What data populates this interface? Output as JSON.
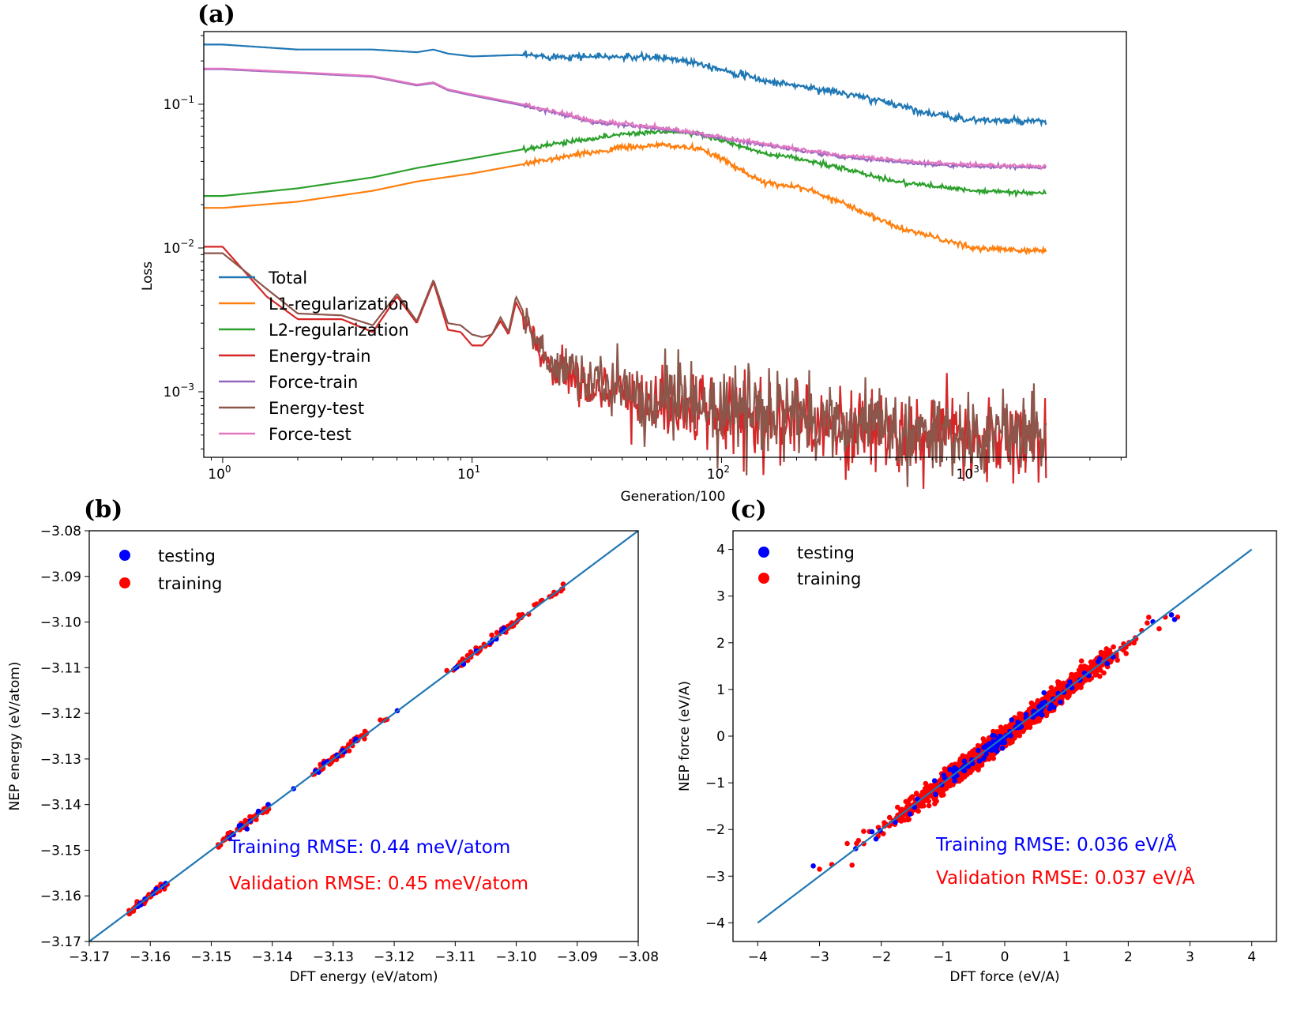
{
  "chart_data": [
    {
      "panel": "(a)",
      "type": "line",
      "xscale": "log",
      "yscale": "log",
      "xlabel": "Generation/100",
      "ylabel": "Loss",
      "xlim": [
        0.84,
        4200
      ],
      "ylim": [
        0.00035,
        0.32
      ],
      "xticks": [
        {
          "value": 1,
          "base": "10",
          "exp": "0"
        },
        {
          "value": 10,
          "base": "10",
          "exp": "1"
        },
        {
          "value": 100,
          "base": "10",
          "exp": "2"
        },
        {
          "value": 1000,
          "base": "10",
          "exp": "3"
        }
      ],
      "yticks": [
        {
          "value": 0.001,
          "base": "10",
          "exp": "−3"
        },
        {
          "value": 0.01,
          "base": "10",
          "exp": "−2"
        },
        {
          "value": 0.1,
          "base": "10",
          "exp": "−1"
        }
      ],
      "legend_position": "lower-left",
      "series": [
        {
          "name": "Total",
          "color": "#1f77b4",
          "noise": 0.012,
          "x": [
            0.84,
            1,
            2,
            4,
            6,
            7,
            8,
            10,
            15,
            20,
            30,
            60,
            80,
            100,
            150,
            200,
            300,
            500,
            700,
            1000,
            2000
          ],
          "y": [
            0.26,
            0.26,
            0.24,
            0.24,
            0.23,
            0.24,
            0.225,
            0.215,
            0.22,
            0.215,
            0.215,
            0.21,
            0.195,
            0.175,
            0.145,
            0.135,
            0.12,
            0.1,
            0.085,
            0.078,
            0.075
          ]
        },
        {
          "name": "L1-regularization",
          "color": "#ff7f0e",
          "noise": 0.01,
          "x": [
            0.84,
            1,
            2,
            4,
            6,
            10,
            20,
            40,
            60,
            80,
            100,
            150,
            200,
            300,
            500,
            700,
            1000,
            2000
          ],
          "y": [
            0.019,
            0.019,
            0.021,
            0.025,
            0.029,
            0.033,
            0.041,
            0.05,
            0.052,
            0.049,
            0.042,
            0.028,
            0.027,
            0.021,
            0.014,
            0.012,
            0.01,
            0.0095
          ]
        },
        {
          "name": "L2-regularization",
          "color": "#2ca02c",
          "noise": 0.008,
          "x": [
            0.84,
            1,
            2,
            4,
            6,
            10,
            20,
            40,
            60,
            80,
            100,
            150,
            200,
            300,
            500,
            700,
            1000,
            2000
          ],
          "y": [
            0.023,
            0.023,
            0.026,
            0.031,
            0.036,
            0.042,
            0.052,
            0.062,
            0.065,
            0.062,
            0.056,
            0.045,
            0.042,
            0.036,
            0.029,
            0.027,
            0.025,
            0.024
          ]
        },
        {
          "name": "Energy-train",
          "color": "#d62728",
          "noise": 0.14,
          "x": [
            0.84,
            1,
            1.5,
            2,
            3,
            4,
            5,
            6,
            7,
            8,
            9,
            10,
            11,
            12,
            13,
            14,
            15,
            20,
            30,
            50,
            100,
            200,
            300,
            500,
            1000,
            2000
          ],
          "y": [
            0.0102,
            0.0102,
            0.0046,
            0.0032,
            0.0032,
            0.0026,
            0.0046,
            0.003,
            0.0058,
            0.0027,
            0.0026,
            0.0021,
            0.0021,
            0.0025,
            0.0031,
            0.0025,
            0.0042,
            0.0015,
            0.0011,
            0.00085,
            0.0007,
            0.00065,
            0.00058,
            0.00052,
            0.00048,
            0.00046
          ]
        },
        {
          "name": "Force-train",
          "color": "#9467bd",
          "noise": 0.006,
          "x": [
            0.84,
            1,
            2,
            4,
            6,
            7,
            8,
            10,
            15,
            20,
            30,
            60,
            80,
            100,
            150,
            200,
            300,
            500,
            700,
            1000,
            2000
          ],
          "y": [
            0.175,
            0.175,
            0.165,
            0.155,
            0.135,
            0.14,
            0.125,
            0.115,
            0.1,
            0.09,
            0.075,
            0.067,
            0.062,
            0.058,
            0.052,
            0.048,
            0.043,
            0.04,
            0.038,
            0.037,
            0.036
          ]
        },
        {
          "name": "Energy-test",
          "color": "#8c564b",
          "noise": 0.14,
          "x": [
            0.84,
            1,
            1.5,
            2,
            3,
            4,
            5,
            6,
            7,
            8,
            9,
            10,
            11,
            12,
            13,
            14,
            15,
            20,
            30,
            50,
            100,
            200,
            300,
            500,
            1000,
            2000
          ],
          "y": [
            0.0092,
            0.0092,
            0.0052,
            0.0035,
            0.0034,
            0.0029,
            0.0048,
            0.0031,
            0.006,
            0.003,
            0.0029,
            0.0025,
            0.0024,
            0.0025,
            0.0033,
            0.0026,
            0.0046,
            0.0016,
            0.0012,
            0.0009,
            0.00075,
            0.00068,
            0.0006,
            0.00054,
            0.0005,
            0.00048
          ]
        },
        {
          "name": "Force-test",
          "color": "#e377c2",
          "noise": 0.006,
          "x": [
            0.84,
            1,
            2,
            4,
            6,
            7,
            8,
            10,
            15,
            20,
            30,
            60,
            80,
            100,
            150,
            200,
            300,
            500,
            700,
            1000,
            2000
          ],
          "y": [
            0.177,
            0.177,
            0.167,
            0.157,
            0.137,
            0.142,
            0.127,
            0.117,
            0.102,
            0.092,
            0.077,
            0.068,
            0.063,
            0.059,
            0.053,
            0.049,
            0.044,
            0.041,
            0.039,
            0.038,
            0.037
          ]
        }
      ]
    },
    {
      "panel": "(b)",
      "type": "scatter",
      "xlabel": "DFT energy (eV/atom)",
      "ylabel": "NEP energy (eV/atom)",
      "xlim": [
        -3.17,
        -3.08
      ],
      "ylim": [
        -3.17,
        -3.08
      ],
      "xticks": [
        -3.17,
        -3.16,
        -3.15,
        -3.14,
        -3.13,
        -3.12,
        -3.11,
        -3.1,
        -3.09,
        -3.08
      ],
      "yticks": [
        -3.17,
        -3.16,
        -3.15,
        -3.14,
        -3.13,
        -3.12,
        -3.11,
        -3.1,
        -3.09,
        -3.08
      ],
      "diagonal": [
        [
          -3.17,
          -3.17
        ],
        [
          -3.08,
          -3.08
        ]
      ],
      "legend_position": "upper-left",
      "series": [
        {
          "name": "testing",
          "color": "#0000ff",
          "clusters": [
            [
              -3.1625,
              -3.157,
              8
            ],
            [
              -3.148,
              -3.1405,
              10
            ],
            [
              -3.133,
              -3.1255,
              10
            ],
            [
              -3.111,
              -3.102,
              10
            ],
            [
              -3.1365,
              -3.1365,
              1
            ],
            [
              -3.1195,
              -3.1195,
              1
            ]
          ]
        },
        {
          "name": "training",
          "color": "#ff0000",
          "clusters": [
            [
              -3.1635,
              -3.157,
              45
            ],
            [
              -3.149,
              -3.1405,
              55
            ],
            [
              -3.1335,
              -3.1245,
              50
            ],
            [
              -3.1115,
              -3.0985,
              50
            ],
            [
              -3.0985,
              -3.0915,
              14
            ],
            [
              -3.1225,
              -3.1205,
              3
            ]
          ]
        }
      ],
      "annotations": [
        {
          "text": "Training RMSE: 0.44 meV/atom",
          "color": "#0000ff"
        },
        {
          "text": "Validation RMSE: 0.45 meV/atom",
          "color": "#ff0000"
        }
      ]
    },
    {
      "panel": "(c)",
      "type": "scatter",
      "xlabel": "DFT force (eV/A)",
      "ylabel": "NEP force (eV/A)",
      "xlim": [
        -4.4,
        4.4
      ],
      "ylim": [
        -4.4,
        4.4
      ],
      "xticks": [
        -4,
        -3,
        -2,
        -1,
        0,
        1,
        2,
        3,
        4
      ],
      "yticks": [
        -4,
        -3,
        -2,
        -1,
        0,
        1,
        2,
        3,
        4
      ],
      "diagonal": [
        [
          -4,
          -4
        ],
        [
          4,
          4
        ]
      ],
      "legend_position": "upper-left",
      "series": [
        {
          "name": "testing",
          "color": "#0000ff",
          "range": [
            -3.1,
            2.8
          ],
          "count": 120
        },
        {
          "name": "training",
          "color": "#ff0000",
          "range": [
            -3.0,
            2.8
          ],
          "count": 2600
        }
      ],
      "annotations": [
        {
          "text": "Training RMSE: 0.036 eV/Å",
          "color": "#0000ff"
        },
        {
          "text": "Validation RMSE: 0.037 eV/Å",
          "color": "#ff0000"
        }
      ]
    }
  ]
}
